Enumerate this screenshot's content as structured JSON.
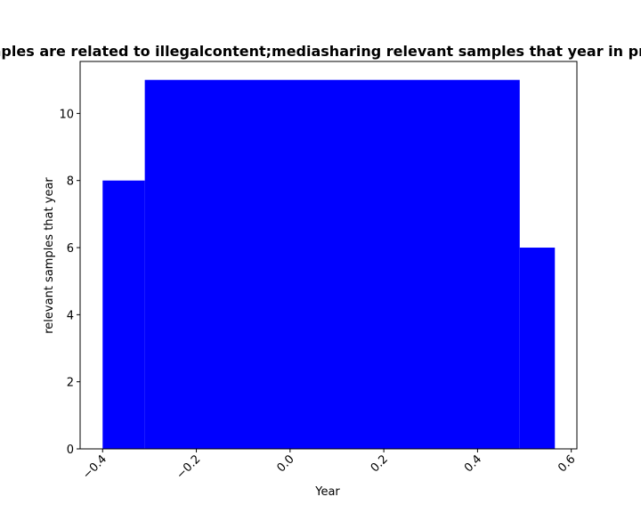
{
  "chart_data": {
    "type": "bar",
    "title": "Samples are related to illegalcontent;mediasharing relevant samples that year in privacy",
    "xlabel": "Year",
    "ylabel": "relevant samples that year",
    "xlim": [
      -0.448,
      0.612
    ],
    "ylim": [
      0,
      11.55
    ],
    "xticks": [
      -0.4,
      -0.2,
      0.0,
      0.2,
      0.4,
      0.6
    ],
    "xtick_labels": [
      "−0.4",
      "−0.2",
      "0.0",
      "0.2",
      "0.4",
      "0.6"
    ],
    "xtick_rotation": 45,
    "yticks": [
      0,
      2,
      4,
      6,
      8,
      10
    ],
    "ytick_labels": [
      "0",
      "2",
      "4",
      "6",
      "8",
      "10"
    ],
    "bar_color": "#0000ff",
    "grid": false,
    "legend": "none",
    "bars": [
      {
        "x0": -0.4,
        "x1": -0.31,
        "value": 8
      },
      {
        "x0": -0.31,
        "x1": 0.49,
        "value": 11
      },
      {
        "x0": 0.49,
        "x1": 0.565,
        "value": 6
      }
    ]
  }
}
